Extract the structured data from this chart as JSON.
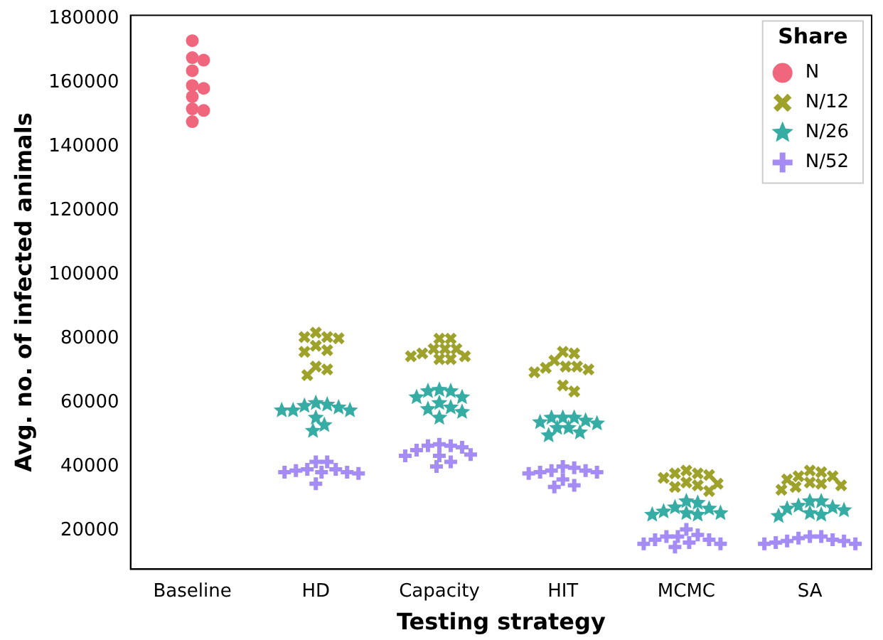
{
  "chart_data": {
    "type": "scatter",
    "xlabel": "Testing strategy",
    "ylabel": "Avg. no. of infected animals",
    "legend_title": "Share",
    "legend": "top right",
    "grid": false,
    "categories": [
      "Baseline",
      "HD",
      "Capacity",
      "HIT",
      "MCMC",
      "SA"
    ],
    "ylim": [
      8000,
      181000
    ],
    "yticks": [
      20000,
      40000,
      60000,
      80000,
      100000,
      120000,
      140000,
      160000,
      180000
    ],
    "series": [
      {
        "name": "N",
        "color": "#f0677d",
        "marker": "circle",
        "x": [
          "Baseline",
          "Baseline",
          "Baseline",
          "Baseline",
          "Baseline",
          "Baseline",
          "Baseline",
          "Baseline",
          "Baseline",
          "Baseline"
        ],
        "values": [
          173100,
          167800,
          167000,
          163700,
          159100,
          158200,
          155600,
          151300,
          151800,
          147800
        ]
      },
      {
        "name": "N/12",
        "color": "#9ea22b",
        "marker": "cross",
        "x": [
          "HD",
          "HD",
          "HD",
          "HD",
          "HD",
          "HD",
          "HD",
          "HD",
          "HD",
          "HD",
          "Capacity",
          "Capacity",
          "Capacity",
          "Capacity",
          "Capacity",
          "Capacity",
          "Capacity",
          "Capacity",
          "Capacity",
          "Capacity",
          "HIT",
          "HIT",
          "HIT",
          "HIT",
          "HIT",
          "HIT",
          "HIT",
          "HIT",
          "HIT",
          "HIT",
          "MCMC",
          "MCMC",
          "MCMC",
          "MCMC",
          "MCMC",
          "MCMC",
          "MCMC",
          "MCMC",
          "MCMC",
          "MCMC",
          "SA",
          "SA",
          "SA",
          "SA",
          "SA",
          "SA",
          "SA",
          "SA",
          "SA",
          "SA"
        ],
        "values": [
          81900,
          80100,
          76400,
          80500,
          75900,
          80500,
          77800,
          70400,
          68600,
          71300,
          76800,
          76800,
          74500,
          73600,
          73600,
          80000,
          80000,
          74500,
          75400,
          76800,
          73200,
          71300,
          70900,
          75400,
          75900,
          69500,
          70400,
          71300,
          65400,
          63500,
          38800,
          36500,
          34700,
          33700,
          37400,
          32400,
          34200,
          35100,
          37900,
          37900,
          37000,
          36000,
          34700,
          32800,
          38300,
          33700,
          34200,
          35100,
          37000,
          38800
        ]
      },
      {
        "name": "N/26",
        "color": "#36ada4",
        "marker": "star",
        "x": [
          "HD",
          "HD",
          "HD",
          "HD",
          "HD",
          "HD",
          "HD",
          "HD",
          "HD",
          "HD",
          "Capacity",
          "Capacity",
          "Capacity",
          "Capacity",
          "Capacity",
          "Capacity",
          "Capacity",
          "Capacity",
          "Capacity",
          "Capacity",
          "HIT",
          "HIT",
          "HIT",
          "HIT",
          "HIT",
          "HIT",
          "HIT",
          "HIT",
          "HIT",
          "HIT",
          "MCMC",
          "MCMC",
          "MCMC",
          "MCMC",
          "MCMC",
          "MCMC",
          "MCMC",
          "MCMC",
          "MCMC",
          "SA",
          "SA",
          "SA",
          "SA",
          "SA",
          "SA",
          "SA",
          "SA",
          "SA"
        ],
        "values": [
          59400,
          57600,
          57600,
          57600,
          59900,
          55300,
          58500,
          53000,
          51200,
          59000,
          61700,
          61700,
          57100,
          59900,
          63600,
          63600,
          64000,
          55300,
          58000,
          58500,
          55300,
          53500,
          53900,
          50700,
          49800,
          54400,
          52100,
          52100,
          55300,
          55300,
          28700,
          26900,
          25500,
          25000,
          25000,
          25500,
          26000,
          27300,
          29200,
          27800,
          26900,
          26400,
          29200,
          24600,
          29200,
          25000,
          25500,
          27300
        ]
      },
      {
        "name": "N/52",
        "color": "#a48cf4",
        "marker": "plus",
        "x": [
          "HD",
          "HD",
          "HD",
          "HD",
          "HD",
          "HD",
          "HD",
          "HD",
          "HD",
          "HD",
          "Capacity",
          "Capacity",
          "Capacity",
          "Capacity",
          "Capacity",
          "Capacity",
          "Capacity",
          "Capacity",
          "Capacity",
          "Capacity",
          "HIT",
          "HIT",
          "HIT",
          "HIT",
          "HIT",
          "HIT",
          "HIT",
          "HIT",
          "HIT",
          "HIT",
          "MCMC",
          "MCMC",
          "MCMC",
          "MCMC",
          "MCMC",
          "MCMC",
          "MCMC",
          "MCMC",
          "MCMC",
          "MCMC",
          "SA",
          "SA",
          "SA",
          "SA",
          "SA",
          "SA",
          "SA",
          "SA",
          "SA"
        ],
        "values": [
          41500,
          39200,
          38300,
          37900,
          41500,
          34700,
          38300,
          38300,
          38800,
          39200,
          47000,
          46100,
          45200,
          41500,
          43800,
          40100,
          43400,
          43400,
          46600,
          46600,
          38800,
          38300,
          37900,
          34200,
          33700,
          38800,
          36000,
          38300,
          39700,
          40100,
          18200,
          17200,
          16300,
          15900,
          20400,
          14900,
          15900,
          17200,
          18200,
          18700,
          18200,
          17700,
          16800,
          15900,
          15900,
          16300,
          16800,
          17200,
          18200
        ]
      }
    ]
  }
}
